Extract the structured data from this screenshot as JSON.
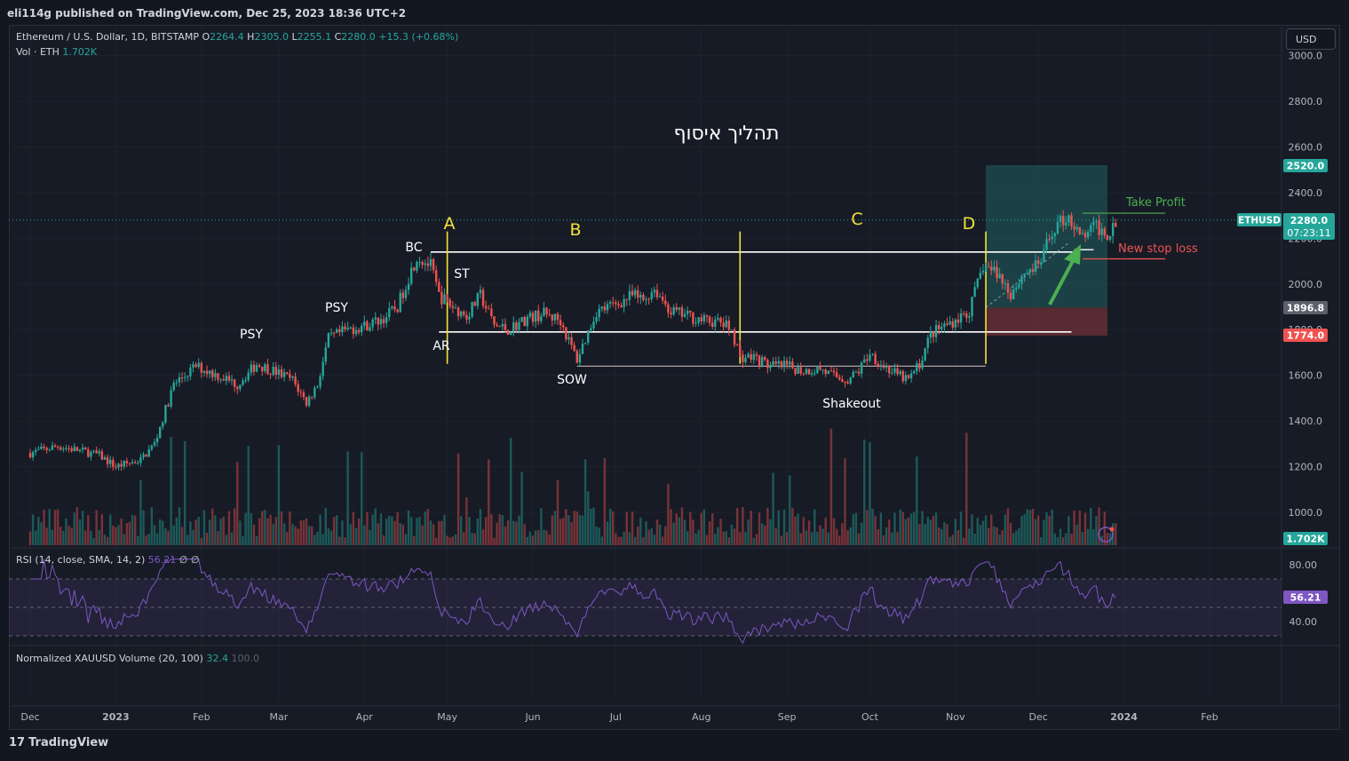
{
  "header": {
    "published": "eli114g published on TradingView.com, Dec 25, 2023 18:36 UTC+2"
  },
  "legend": {
    "symbol": "Ethereum / U.S. Dollar, 1D, BITSTAMP",
    "o_label": "O",
    "o": "2264.4",
    "h_label": "H",
    "h": "2305.0",
    "l_label": "L",
    "l": "2255.1",
    "c_label": "C",
    "c": "2280.0",
    "change": "+15.3 (+0.68%)",
    "vol_label": "Vol · ETH",
    "vol": "1.702K"
  },
  "currency_button": "USD",
  "rsi_legend": {
    "label": "RSI (14, close, SMA, 14, 2)",
    "value": "56.21",
    "extra": "∅ ∅"
  },
  "norm_legend": {
    "label": "Normalized XAUUSD Volume (20, 100)",
    "value": "32.4",
    "value2": "100.0"
  },
  "footer": {
    "brand": "TradingView",
    "logo": "17"
  },
  "price_badges": {
    "tp": "2520.0",
    "symbol": "ETHUSD",
    "last": "2280.0",
    "countdown": "07:23:11",
    "entry": "1896.8",
    "sl": "1774.0",
    "volume": "1.702K",
    "rsi": "56.21"
  },
  "annotations": {
    "title_hebrew": "תהליך איסוף",
    "phase_a": "A",
    "phase_b": "B",
    "phase_c": "C",
    "phase_d": "D",
    "psy1": "PSY",
    "psy2": "PSY",
    "bc": "BC",
    "st": "ST",
    "ar": "AR",
    "sow": "SOW",
    "shakeout": "Shakeout",
    "take_profit": "Take Profit",
    "new_stop_loss": "New stop loss"
  },
  "colors": {
    "up": "#26a69a",
    "down": "#ef5350",
    "yellow": "#f5e23b",
    "rsi": "#7e57c2",
    "bg": "#131722"
  },
  "chart_data": {
    "type": "candlestick",
    "symbol": "ETHUSD",
    "ylim": [
      900,
      3050
    ],
    "y_ticks": [
      "3000.0",
      "2800.0",
      "2600.0",
      "2400.0",
      "2200.0",
      "2000.0",
      "1800.0",
      "1600.0",
      "1400.0",
      "1200.0",
      "1000.0"
    ],
    "y_tick_values": [
      3000,
      2800,
      2600,
      2400,
      2200,
      2000,
      1800,
      1600,
      1400,
      1200,
      1000
    ],
    "x_ticks": [
      "Dec",
      "2023",
      "Feb",
      "Mar",
      "Apr",
      "May",
      "Jun",
      "Jul",
      "Aug",
      "Sep",
      "Oct",
      "Nov",
      "Dec",
      "2024",
      "Feb"
    ],
    "x_tick_days": [
      0,
      31,
      62,
      90,
      121,
      151,
      182,
      212,
      243,
      274,
      304,
      335,
      365,
      396,
      427
    ],
    "price_path": [
      [
        0,
        1260
      ],
      [
        10,
        1290
      ],
      [
        20,
        1265
      ],
      [
        25,
        1250
      ],
      [
        31,
        1200
      ],
      [
        40,
        1230
      ],
      [
        45,
        1300
      ],
      [
        52,
        1560
      ],
      [
        60,
        1640
      ],
      [
        68,
        1600
      ],
      [
        75,
        1560
      ],
      [
        82,
        1650
      ],
      [
        88,
        1620
      ],
      [
        95,
        1580
      ],
      [
        100,
        1480
      ],
      [
        104,
        1560
      ],
      [
        108,
        1760
      ],
      [
        115,
        1800
      ],
      [
        122,
        1820
      ],
      [
        128,
        1850
      ],
      [
        133,
        1900
      ],
      [
        136,
        2000
      ],
      [
        140,
        2120
      ],
      [
        145,
        2080
      ],
      [
        148,
        1950
      ],
      [
        153,
        1900
      ],
      [
        158,
        1860
      ],
      [
        163,
        1950
      ],
      [
        168,
        1820
      ],
      [
        173,
        1800
      ],
      [
        180,
        1850
      ],
      [
        186,
        1870
      ],
      [
        192,
        1840
      ],
      [
        195,
        1750
      ],
      [
        198,
        1670
      ],
      [
        205,
        1880
      ],
      [
        212,
        1910
      ],
      [
        218,
        1950
      ],
      [
        222,
        1930
      ],
      [
        226,
        1980
      ],
      [
        232,
        1880
      ],
      [
        238,
        1860
      ],
      [
        244,
        1840
      ],
      [
        250,
        1830
      ],
      [
        254,
        1800
      ],
      [
        257,
        1680
      ],
      [
        262,
        1680
      ],
      [
        268,
        1640
      ],
      [
        274,
        1640
      ],
      [
        280,
        1620
      ],
      [
        286,
        1630
      ],
      [
        290,
        1600
      ],
      [
        296,
        1580
      ],
      [
        300,
        1620
      ],
      [
        304,
        1700
      ],
      [
        308,
        1650
      ],
      [
        314,
        1600
      ],
      [
        318,
        1580
      ],
      [
        322,
        1650
      ],
      [
        326,
        1780
      ],
      [
        330,
        1810
      ],
      [
        336,
        1850
      ],
      [
        340,
        1880
      ],
      [
        345,
        2080
      ],
      [
        350,
        2050
      ],
      [
        355,
        1960
      ],
      [
        360,
        2050
      ],
      [
        365,
        2080
      ],
      [
        371,
        2250
      ],
      [
        376,
        2300
      ],
      [
        380,
        2200
      ],
      [
        386,
        2250
      ],
      [
        390,
        2220
      ],
      [
        393,
        2280
      ]
    ],
    "volume_profile": "bars 0-1 scale",
    "rsi": {
      "overbought": 70,
      "oversold": 30,
      "mid": 50,
      "ticks": [
        "80.00",
        "40.00"
      ],
      "ylim": [
        20,
        85
      ],
      "last": 56.21
    },
    "levels": {
      "bc_resistance": 2140,
      "ar_support": 1790,
      "sow_support": 1640,
      "take_profit": 2310,
      "new_stop_loss": 2110,
      "box_top": 2520,
      "box_entry": 1896.8,
      "box_stop": 1774.0
    },
    "phase_markers_days": [
      151,
      257,
      346
    ],
    "last_price": 2280.0
  }
}
